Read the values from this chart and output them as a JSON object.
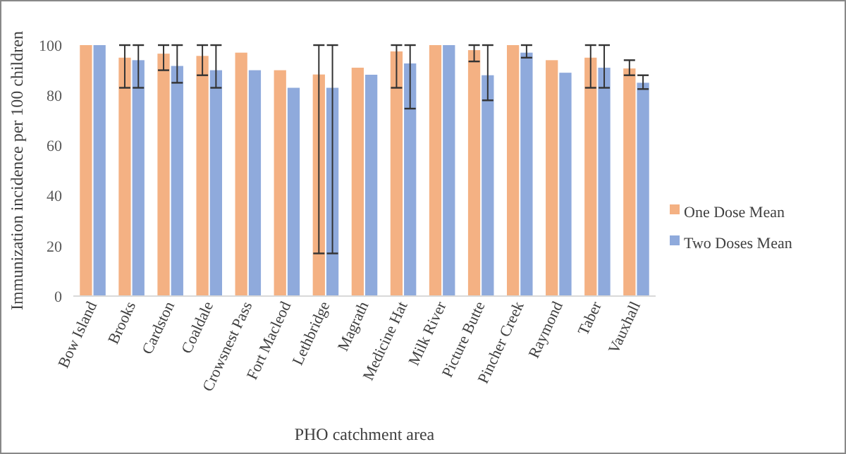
{
  "chart_data": {
    "type": "bar",
    "xlabel": "PHO catchment area",
    "ylabel": "Immunization incidence per 100 children",
    "categories": [
      "Bow Island",
      "Brooks",
      "Cardston",
      "Coaldale",
      "Crowsnest Pass",
      "Fort Macleod",
      "Lethbridge",
      "Magrath",
      "Medicine Hat",
      "Milk River",
      "Picture Butte",
      "Pincher Creek",
      "Raymond",
      "Taber",
      "Vauxhall"
    ],
    "series": [
      {
        "name": "One Dose Mean",
        "color": "#f4b183",
        "values": [
          100,
          95,
          96.6,
          95.7,
          97,
          90,
          88.3,
          91,
          97.5,
          100,
          98,
          100,
          94,
          95,
          90.7
        ],
        "errors": [
          null,
          [
            83,
            100
          ],
          [
            90,
            100
          ],
          [
            88,
            100
          ],
          null,
          null,
          [
            17,
            100
          ],
          null,
          [
            83,
            100
          ],
          null,
          [
            93.5,
            100
          ],
          null,
          null,
          [
            83,
            100
          ],
          [
            88,
            94
          ]
        ]
      },
      {
        "name": "Two Doses Mean",
        "color": "#8faadc",
        "values": [
          100,
          94,
          91.7,
          90,
          90,
          83,
          83,
          88.2,
          92.7,
          100,
          88,
          97,
          89,
          91,
          85
        ],
        "errors": [
          null,
          [
            83,
            100
          ],
          [
            85,
            100
          ],
          [
            83,
            100
          ],
          null,
          null,
          [
            17,
            100
          ],
          null,
          [
            74.7,
            100
          ],
          null,
          [
            78,
            100
          ],
          [
            95,
            100
          ],
          null,
          [
            83,
            100
          ],
          [
            82.5,
            88
          ]
        ]
      }
    ],
    "ylim": [
      0,
      100
    ],
    "yticks": [
      0,
      20,
      40,
      60,
      80,
      100
    ],
    "grid": false,
    "legend": "right"
  }
}
